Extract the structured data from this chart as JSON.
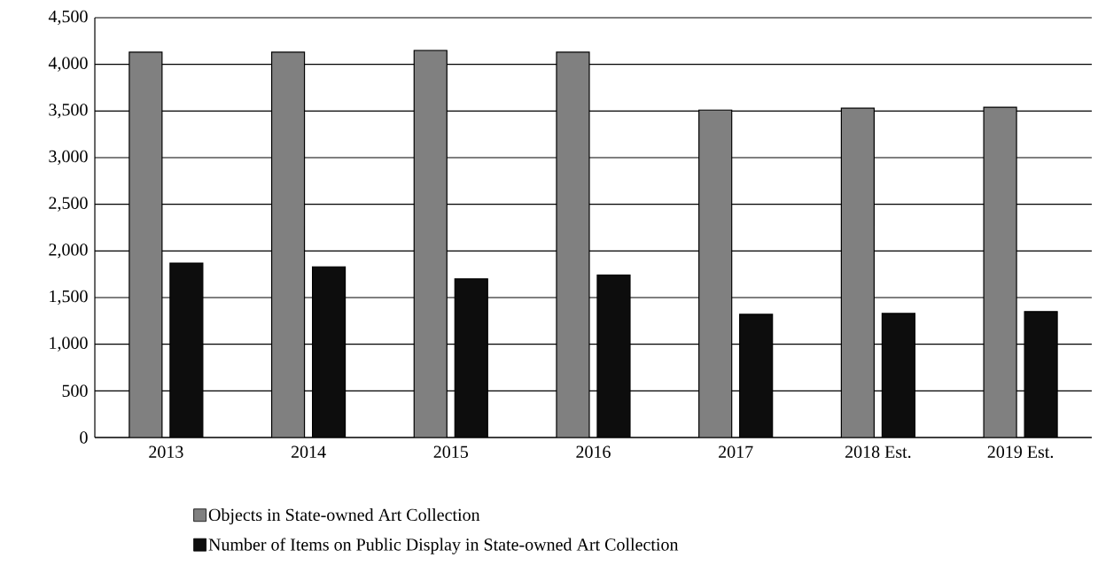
{
  "chart_data": {
    "type": "bar",
    "categories": [
      "2013",
      "2014",
      "2015",
      "2016",
      "2017",
      "2018 Est.",
      "2019 Est."
    ],
    "series": [
      {
        "name": "Objects in State-owned Art Collection",
        "color": "#808080",
        "values": [
          4130,
          4130,
          4150,
          4130,
          3510,
          3530,
          3540
        ]
      },
      {
        "name": "Number of Items on Public Display in State-owned Art Collection",
        "color": "#0d0d0d",
        "values": [
          1870,
          1830,
          1700,
          1740,
          1320,
          1330,
          1350
        ]
      }
    ],
    "ylim": [
      0,
      4500
    ],
    "yticks": [
      0,
      500,
      {
        "value": 1000,
        "label": "1,000"
      },
      {
        "value": 1500,
        "label": "1,500"
      },
      {
        "value": 2000,
        "label": "2,000"
      },
      {
        "value": 2500,
        "label": "2,500"
      },
      {
        "value": 3000,
        "label": "3,000"
      },
      {
        "value": 3500,
        "label": "3,500"
      },
      {
        "value": 4000,
        "label": "4,000"
      },
      {
        "value": 4500,
        "label": "4,500"
      }
    ],
    "grid": "y",
    "legend": "bottom"
  }
}
